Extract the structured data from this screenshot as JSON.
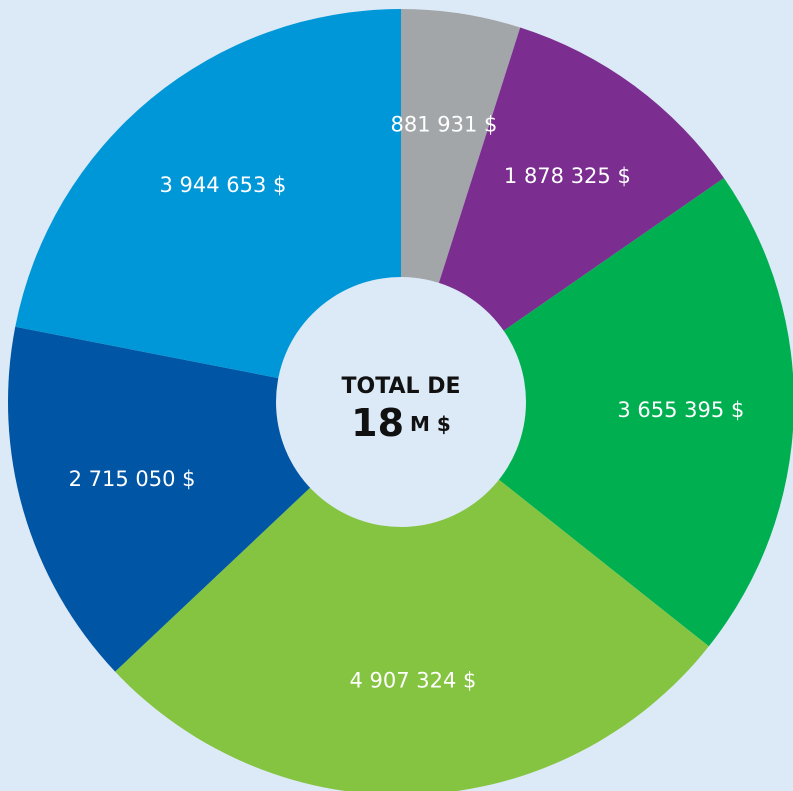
{
  "chart_data": {
    "type": "donut",
    "categories": [
      null,
      null,
      null,
      null,
      null,
      null
    ],
    "values": [
      881931,
      1878325,
      3655395,
      4907324,
      2715050,
      3944653
    ],
    "value_labels": [
      "881 931 $",
      "1 878 325 $",
      "3 655 395 $",
      "4 907 324 $",
      "2 715 050 $",
      "3 944 653 $"
    ],
    "colors": [
      "#a3a6a9",
      "#7b2d90",
      "#00b050",
      "#84c441",
      "#0055a4",
      "#0097d8"
    ],
    "center_title": "TOTAL DE",
    "center_value": "18",
    "center_unit": "M $"
  }
}
